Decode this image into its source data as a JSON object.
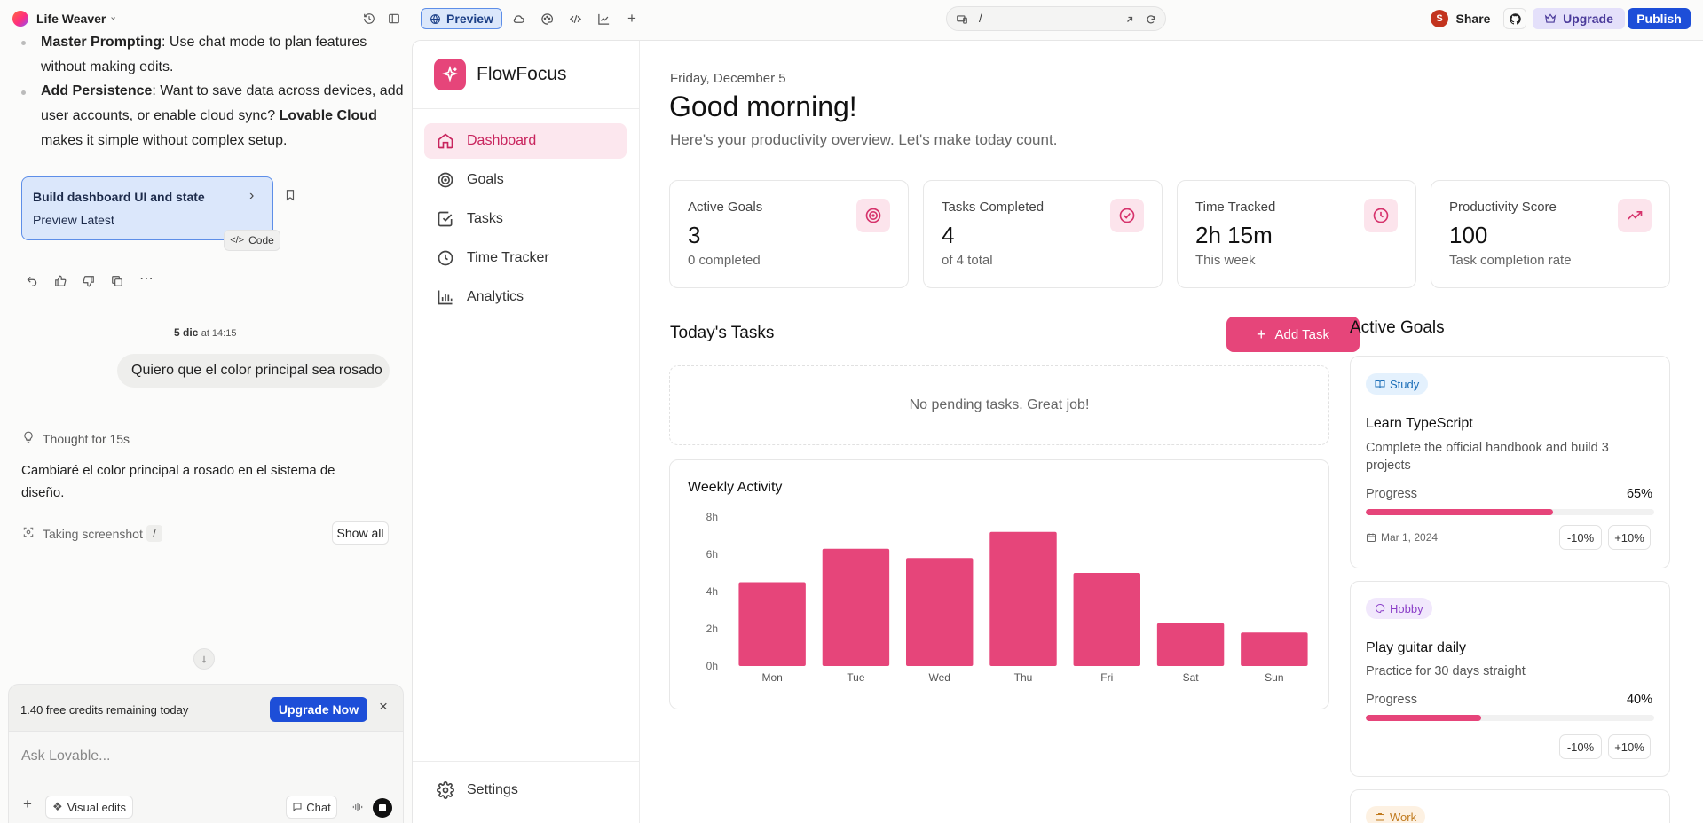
{
  "topbar": {
    "project_name": "Life Weaver",
    "preview_label": "Preview",
    "path": "/",
    "share_label": "Share",
    "avatar_initial": "S",
    "upgrade_label": "Upgrade",
    "publish_label": "Publish"
  },
  "chat": {
    "line1_bold": "Master Prompting",
    "line1_rest": ": Use  chat mode  to plan features",
    "line2": "without making edits.",
    "persist_bold": "Add Persistence",
    "persist_rest": ": Want to save data across devices, add",
    "persist_line2_a": "user accounts, or enable cloud sync? ",
    "persist_line2_bold": "Lovable Cloud",
    "persist_line3": "makes it simple without complex setup.",
    "version_title": "Build dashboard UI and state",
    "version_sub": "Preview Latest",
    "code_label": "Code",
    "timestamp_date": "5 dic",
    "timestamp_time": "at 14:15",
    "user_message": "Quiero que el color principal sea rosado",
    "thought": "Thought for 15s",
    "reply_line1": "Cambiaré el color principal a rosado en el sistema de",
    "reply_line2": "diseño.",
    "tool_action": "Taking screenshot",
    "tool_arg": "/",
    "show_all": "Show all",
    "credits": "1.40 free credits remaining today",
    "upgrade_now": "Upgrade Now",
    "input_placeholder": "Ask Lovable...",
    "visual_edits": "Visual edits",
    "chat_mode": "Chat"
  },
  "app": {
    "brand": "FlowFocus",
    "nav": [
      {
        "label": "Dashboard"
      },
      {
        "label": "Goals"
      },
      {
        "label": "Tasks"
      },
      {
        "label": "Time Tracker"
      },
      {
        "label": "Analytics"
      }
    ],
    "settings": "Settings",
    "date": "Friday, December 5",
    "greeting": "Good morning!",
    "subtitle": "Here's your productivity overview. Let's make today count.",
    "stats": [
      {
        "label": "Active Goals",
        "value": "3",
        "sub": "0 completed",
        "icon": "target-icon"
      },
      {
        "label": "Tasks Completed",
        "value": "4",
        "sub": "of 4 total",
        "icon": "check-circle-icon"
      },
      {
        "label": "Time Tracked",
        "value": "2h 15m",
        "sub": "This week",
        "icon": "clock-icon"
      },
      {
        "label": "Productivity Score",
        "value": "100",
        "sub": "Task completion rate",
        "icon": "trending-up-icon"
      }
    ],
    "tasks_title": "Today's Tasks",
    "add_task": "Add Task",
    "no_tasks": "No pending tasks. Great job!",
    "goals_title": "Active Goals",
    "goals": [
      {
        "tag": "Study",
        "title": "Learn TypeScript",
        "desc1": "Complete the official handbook and build 3",
        "desc2": "projects",
        "progress_label": "Progress",
        "progress": 65,
        "progress_text": "65%",
        "date": "Mar 1, 2024",
        "minus": "-10%",
        "plus": "+10%"
      },
      {
        "tag": "Hobby",
        "title": "Play guitar daily",
        "desc1": "Practice for 30 days straight",
        "progress_label": "Progress",
        "progress": 40,
        "progress_text": "40%",
        "minus": "-10%",
        "plus": "+10%"
      },
      {
        "tag": "Work"
      }
    ],
    "accent": "#e6457a"
  },
  "chart_data": {
    "type": "bar",
    "title": "Weekly Activity",
    "categories": [
      "Mon",
      "Tue",
      "Wed",
      "Thu",
      "Fri",
      "Sat",
      "Sun"
    ],
    "values": [
      4.5,
      6.3,
      5.8,
      7.2,
      5.0,
      2.3,
      1.8
    ],
    "ylim": [
      0,
      8
    ],
    "yticks": [
      "0h",
      "2h",
      "4h",
      "6h",
      "8h"
    ],
    "color": "#e6457a"
  }
}
